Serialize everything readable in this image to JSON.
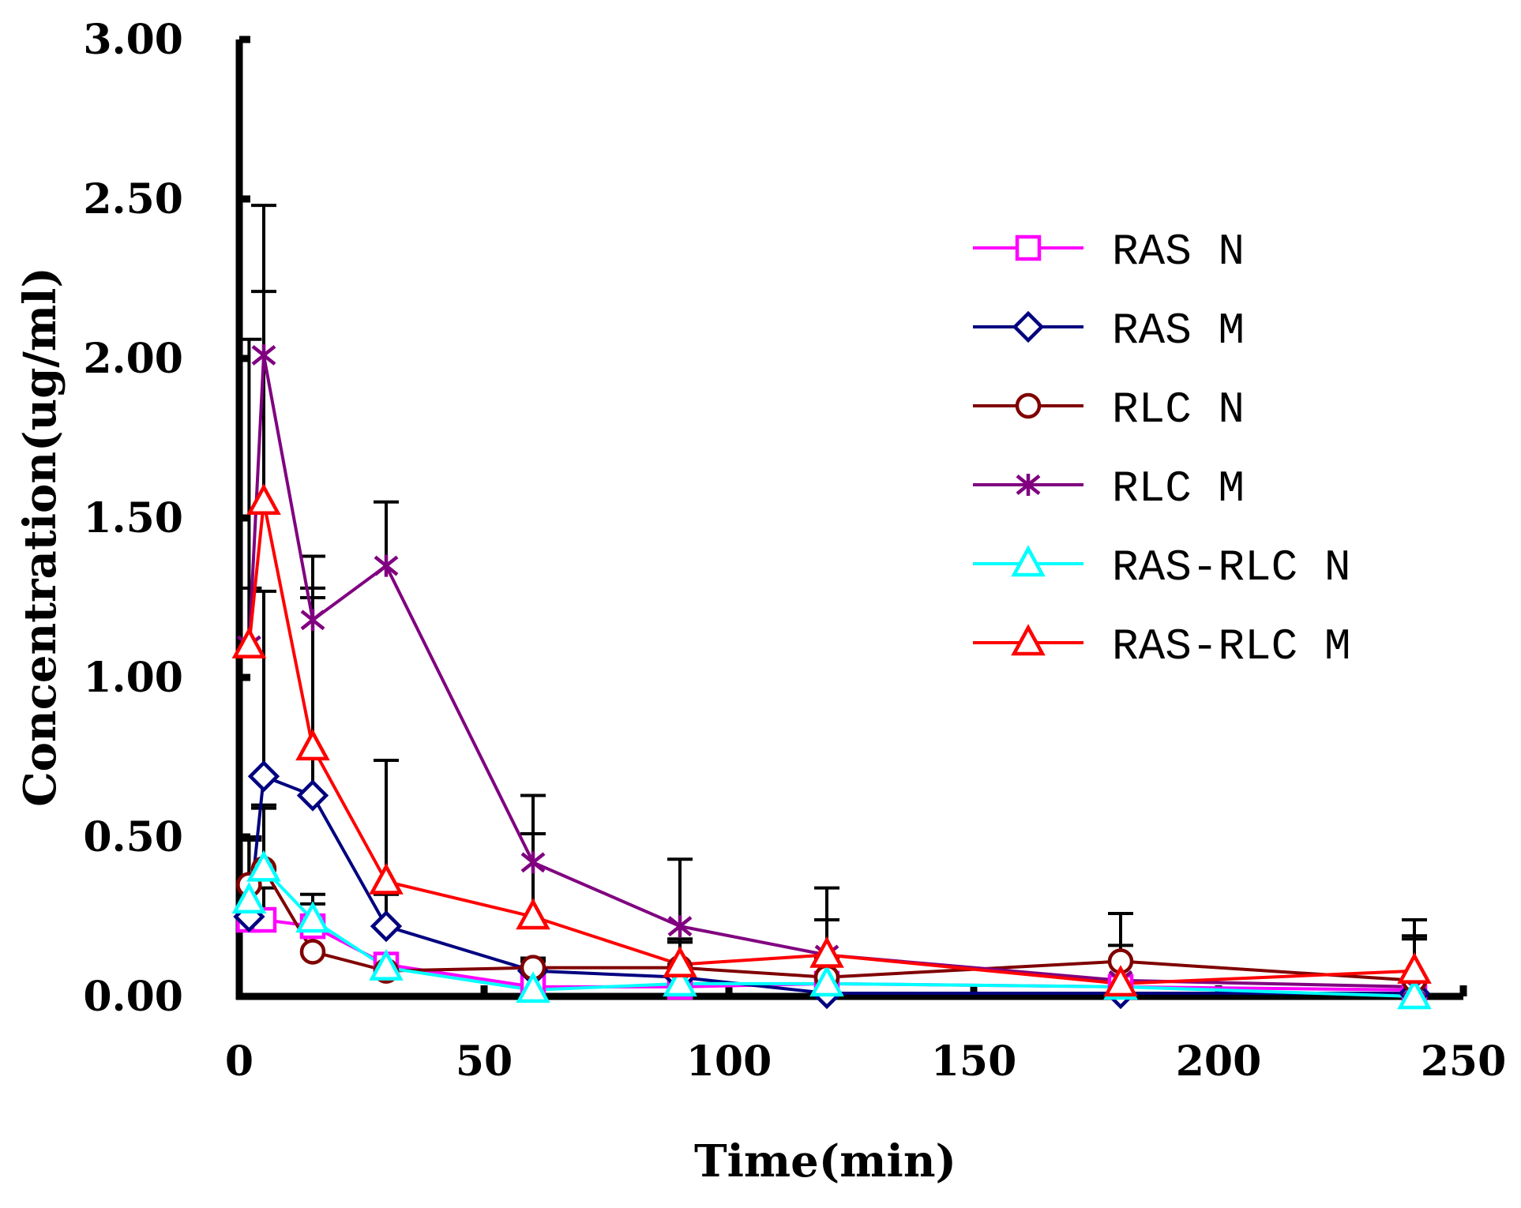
{
  "chart_data": {
    "type": "line",
    "xlabel": "Time(min)",
    "ylabel": "Concentration(ug/ml)",
    "xlim": [
      0,
      250
    ],
    "ylim": [
      0,
      3
    ],
    "x_ticks": [
      "0",
      "50",
      "100",
      "150",
      "200",
      "250"
    ],
    "y_ticks": [
      "0.00",
      "0.50",
      "1.00",
      "1.50",
      "2.00",
      "2.50",
      "3.00"
    ],
    "grid": false,
    "legend_position": "right",
    "x": [
      2,
      5,
      15,
      30,
      60,
      90,
      120,
      180,
      240
    ],
    "series": [
      {
        "name": "RAS N",
        "color": "#ff00ff",
        "marker": "square",
        "values": [
          0.24,
          0.24,
          0.22,
          0.1,
          0.03,
          0.03,
          0.04,
          0.03,
          0.02
        ],
        "error": [
          0.25,
          0.1,
          0.1,
          0.02,
          0.01,
          0.01,
          0.01,
          0.01,
          0.01
        ]
      },
      {
        "name": "RAS M",
        "color": "#000080",
        "marker": "diamond",
        "values": [
          0.25,
          0.69,
          0.63,
          0.22,
          0.08,
          0.06,
          0.01,
          0.01,
          0.01
        ],
        "error": [
          0.25,
          0.58,
          0.62,
          0.1,
          0.03,
          0.04,
          0.02,
          0.02,
          0.01
        ]
      },
      {
        "name": "RLC N",
        "color": "#800000",
        "marker": "circle",
        "values": [
          0.35,
          0.4,
          0.14,
          0.08,
          0.09,
          0.09,
          0.06,
          0.11,
          0.05
        ],
        "error": [
          0.15,
          0.19,
          0.1,
          0.02,
          0.03,
          0.08,
          0.06,
          0.15,
          0.14
        ]
      },
      {
        "name": "RLC M",
        "color": "#800080",
        "marker": "star",
        "values": [
          1.1,
          2.01,
          1.18,
          1.35,
          0.42,
          0.22,
          0.13,
          0.05,
          0.03
        ],
        "error": [
          0.96,
          0.47,
          0.2,
          0.2,
          0.21,
          0.21,
          0.21,
          0.21,
          0.21
        ]
      },
      {
        "name": "RAS-RLC N",
        "color": "#00ffff",
        "marker": "triangle",
        "values": [
          0.3,
          0.4,
          0.24,
          0.09,
          0.02,
          0.04,
          0.04,
          0.03,
          0.0
        ],
        "error": [
          0.2,
          0.2,
          0.05,
          0.03,
          0.01,
          0.01,
          0.01,
          0.01,
          0.01
        ]
      },
      {
        "name": "RAS-RLC M",
        "color": "#ff0000",
        "marker": "triangle",
        "values": [
          1.1,
          1.55,
          0.78,
          0.36,
          0.25,
          0.1,
          0.13,
          0.04,
          0.08
        ],
        "error": [
          0.18,
          0.66,
          0.5,
          0.38,
          0.26,
          0.08,
          0.11,
          0.12,
          0.1
        ]
      }
    ]
  }
}
